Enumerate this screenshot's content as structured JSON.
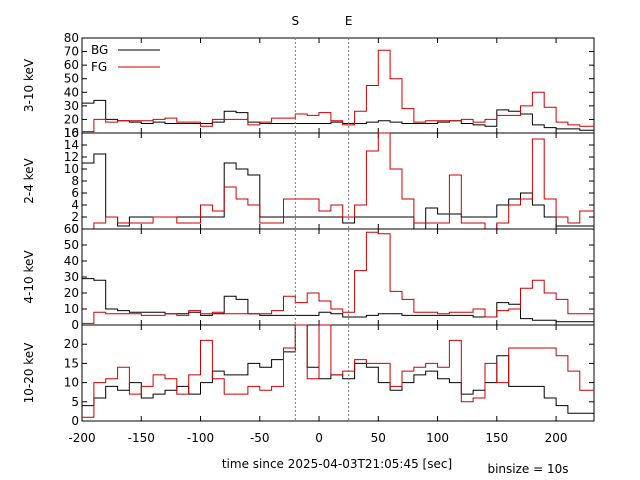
{
  "chart_data": {
    "type": "line",
    "xlabel": "time since 2025-04-03T21:05:45 [sec]",
    "binsize_label": "binsize = 10s",
    "xlim": [
      -200,
      232
    ],
    "xticks": [
      -200,
      -150,
      -100,
      -50,
      0,
      50,
      100,
      150,
      200
    ],
    "markers": [
      {
        "label": "S",
        "x": -20
      },
      {
        "label": "E",
        "x": 25
      }
    ],
    "legend": {
      "placement": "top-left",
      "entries": [
        {
          "name": "BG",
          "color": "#000000"
        },
        {
          "name": "FG",
          "color": "#cc0000"
        }
      ]
    },
    "bin_edges": [
      -200,
      -190,
      -180,
      -170,
      -160,
      -150,
      -140,
      -130,
      -120,
      -110,
      -100,
      -90,
      -80,
      -70,
      -60,
      -50,
      -40,
      -30,
      -20,
      -10,
      0,
      10,
      20,
      30,
      40,
      50,
      60,
      70,
      80,
      90,
      100,
      110,
      120,
      130,
      140,
      150,
      160,
      170,
      180,
      190,
      200,
      210,
      220,
      232
    ],
    "panels": [
      {
        "ylabel": "3-10 keV",
        "ylim": [
          10,
          80
        ],
        "yticks": [
          10,
          20,
          30,
          40,
          50,
          60,
          70,
          80
        ],
        "series": [
          {
            "name": "BG",
            "color": "#000000",
            "values": [
              32,
              34,
              20,
              19,
              18,
              17,
              18,
              17,
              17,
              17,
              17,
              18,
              26,
              25,
              18,
              17,
              17,
              17,
              17,
              17,
              17,
              18,
              17,
              17,
              18,
              19,
              18,
              17,
              17,
              17,
              18,
              19,
              17,
              16,
              15,
              27,
              26,
              24,
              16,
              14,
              13,
              13,
              12
            ]
          },
          {
            "name": "FG",
            "color": "#cc0000",
            "values": [
              11,
              20,
              18,
              19,
              19,
              19,
              20,
              21,
              18,
              18,
              15,
              20,
              20,
              20,
              16,
              18,
              21,
              21,
              24,
              23,
              25,
              19,
              16,
              26,
              45,
              71,
              50,
              28,
              18,
              19,
              19,
              19,
              20,
              18,
              20,
              23,
              23,
              30,
              40,
              29,
              18,
              16,
              15
            ]
          }
        ]
      },
      {
        "ylabel": "2-4 keV",
        "ylim": [
          0,
          16
        ],
        "yticks": [
          0,
          2,
          4,
          6,
          8,
          10,
          12,
          14,
          16
        ],
        "series": [
          {
            "name": "BG",
            "color": "#000000",
            "values": [
              11,
              12.5,
              2,
              0.5,
              2,
              2,
              2,
              2,
              2,
              2,
              2,
              2,
              11,
              10,
              9,
              2,
              2,
              2,
              2,
              2,
              2,
              2,
              1,
              2,
              2,
              2,
              2,
              2,
              0,
              3.5,
              2.5,
              2.5,
              2,
              2,
              2,
              4,
              5,
              6,
              4,
              2,
              0.5,
              0.5,
              0.5
            ]
          },
          {
            "name": "FG",
            "color": "#cc0000",
            "values": [
              0,
              1,
              2,
              1,
              1,
              1,
              2,
              2,
              1,
              1,
              4,
              3,
              7,
              5,
              4,
              1,
              1,
              5,
              5,
              5,
              3,
              4,
              2,
              4,
              13,
              17,
              10,
              5,
              1,
              1,
              1,
              9,
              1,
              1,
              0,
              1,
              4,
              5,
              15,
              5,
              2,
              1,
              3
            ]
          }
        ]
      },
      {
        "ylabel": "4-10 keV",
        "ylim": [
          0,
          60
        ],
        "yticks": [
          0,
          10,
          20,
          30,
          40,
          50,
          60
        ],
        "series": [
          {
            "name": "BG",
            "color": "#000000",
            "values": [
              29,
              28,
              10,
              9,
              8,
              8,
              8,
              7,
              7,
              8,
              6,
              7,
              18,
              16,
              7,
              6,
              6,
              6,
              6,
              6,
              8,
              7,
              5,
              5,
              6,
              7,
              7,
              6,
              6,
              6,
              6,
              6,
              6,
              5,
              5,
              14,
              13,
              4,
              3,
              3,
              2,
              2,
              2
            ]
          },
          {
            "name": "FG",
            "color": "#cc0000",
            "values": [
              1,
              8,
              7,
              7,
              7,
              6,
              6,
              7,
              6,
              9,
              7,
              8,
              7,
              7,
              7,
              7,
              9,
              18,
              14,
              20,
              15,
              10,
              8,
              34,
              58,
              57,
              21,
              16,
              8,
              8,
              7,
              8,
              8,
              10,
              5,
              9,
              10,
              23,
              28,
              20,
              16,
              7,
              7
            ]
          }
        ]
      },
      {
        "ylabel": "10-20 keV",
        "ylim": [
          0,
          25
        ],
        "yticks": [
          0,
          5,
          10,
          15,
          20
        ],
        "series": [
          {
            "name": "BG",
            "color": "#000000",
            "values": [
              4,
              6,
              9,
              8,
              10,
              6,
              7,
              8,
              9,
              7,
              10,
              13,
              12,
              12,
              15,
              14,
              16,
              18,
              27,
              14,
              11,
              12,
              11,
              15,
              14,
              10,
              8,
              10,
              12,
              13,
              11,
              10,
              7,
              8,
              10,
              17,
              9,
              9,
              9,
              6,
              4,
              2,
              2
            ]
          },
          {
            "name": "FG",
            "color": "#cc0000",
            "values": [
              1,
              10,
              11,
              14,
              7,
              9,
              12,
              11,
              7,
              12,
              21,
              11,
              7,
              7,
              9,
              8,
              9,
              19,
              25,
              11,
              25,
              12,
              13,
              16,
              15,
              15,
              9,
              13,
              14,
              15,
              14,
              21,
              5,
              6,
              15,
              10,
              19,
              19,
              19,
              19,
              17,
              13,
              8
            ]
          }
        ]
      }
    ]
  }
}
